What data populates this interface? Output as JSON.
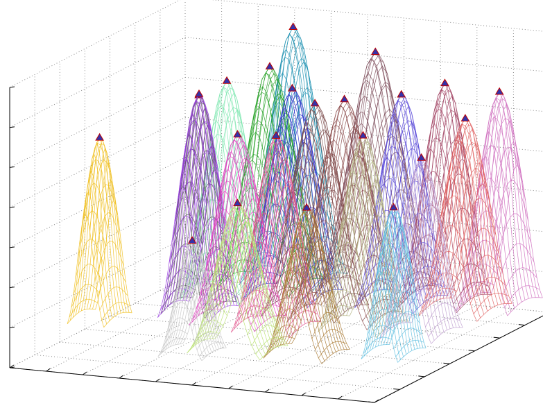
{
  "chart_data": {
    "type": "surface-mesh-3d",
    "title": "",
    "xlabel": "",
    "ylabel": "",
    "zlabel": "",
    "grid": true,
    "ticks_labeled": false,
    "z_ticks": 7,
    "x_ticks": 10,
    "y_ticks": 7,
    "peak_marker": {
      "shape": "triangle",
      "fill": "#3333aa",
      "edge": "#c00000"
    },
    "series": [
      {
        "color": "#1a8fb0",
        "peak_x": 0.32,
        "peak_y": 0.95,
        "peak_z": 0.95,
        "width": 0.1,
        "depth": 0.2
      },
      {
        "color": "#22a022",
        "peak_x": 0.28,
        "peak_y": 0.9,
        "peak_z": 0.82,
        "width": 0.1,
        "depth": 0.2
      },
      {
        "color": "#7fe8b0",
        "peak_x": 0.22,
        "peak_y": 0.78,
        "peak_z": 0.8,
        "width": 0.08,
        "depth": 0.2
      },
      {
        "color": "#3333cc",
        "peak_x": 0.38,
        "peak_y": 0.82,
        "peak_z": 0.78,
        "width": 0.09,
        "depth": 0.2
      },
      {
        "color": "#7b4a58",
        "peak_x": 0.56,
        "peak_y": 0.92,
        "peak_z": 0.9,
        "width": 0.12,
        "depth": 0.2
      },
      {
        "color": "#5a4ad8",
        "peak_x": 0.66,
        "peak_y": 0.86,
        "peak_z": 0.78,
        "width": 0.08,
        "depth": 0.2
      },
      {
        "color": "#a04060",
        "peak_x": 0.76,
        "peak_y": 0.9,
        "peak_z": 0.82,
        "width": 0.08,
        "depth": 0.2
      },
      {
        "color": "#e06060",
        "peak_x": 0.84,
        "peak_y": 0.85,
        "peak_z": 0.72,
        "width": 0.08,
        "depth": 0.2
      },
      {
        "color": "#d070c0",
        "peak_x": 0.9,
        "peak_y": 0.92,
        "peak_z": 0.8,
        "width": 0.07,
        "depth": 0.2
      },
      {
        "color": "#7a4a4a",
        "peak_x": 0.5,
        "peak_y": 0.7,
        "peak_z": 0.78,
        "width": 0.1,
        "depth": 0.2
      },
      {
        "color": "#8b4a4a",
        "peak_x": 0.6,
        "peak_y": 0.66,
        "peak_z": 0.82,
        "width": 0.11,
        "depth": 0.2
      },
      {
        "color": "#555555",
        "peak_x": 0.22,
        "peak_y": 0.62,
        "peak_z": 0.8,
        "width": 0.06,
        "depth": 0.18
      },
      {
        "color": "#9a40e0",
        "peak_x": 0.24,
        "peak_y": 0.58,
        "peak_z": 0.82,
        "width": 0.07,
        "depth": 0.18
      },
      {
        "color": "#e040c0",
        "peak_x": 0.36,
        "peak_y": 0.55,
        "peak_z": 0.7,
        "width": 0.09,
        "depth": 0.18
      },
      {
        "color": "#e0508a",
        "peak_x": 0.48,
        "peak_y": 0.52,
        "peak_z": 0.72,
        "width": 0.08,
        "depth": 0.18
      },
      {
        "color": "#b0b080",
        "peak_x": 0.68,
        "peak_y": 0.6,
        "peak_z": 0.72,
        "width": 0.08,
        "depth": 0.18
      },
      {
        "color": "#c0a0d0",
        "peak_x": 0.84,
        "peak_y": 0.6,
        "peak_z": 0.66,
        "width": 0.07,
        "depth": 0.18
      },
      {
        "color": "#f0c020",
        "peak_x": 0.03,
        "peak_y": 0.45,
        "peak_z": 0.68,
        "width": 0.05,
        "depth": 0.16
      },
      {
        "color": "#b8e070",
        "peak_x": 0.48,
        "peak_y": 0.3,
        "peak_z": 0.55,
        "width": 0.1,
        "depth": 0.16
      },
      {
        "color": "#a87830",
        "peak_x": 0.66,
        "peak_y": 0.32,
        "peak_z": 0.55,
        "width": 0.08,
        "depth": 0.16
      },
      {
        "color": "#c8c8c8",
        "peak_x": 0.38,
        "peak_y": 0.25,
        "peak_z": 0.42,
        "width": 0.06,
        "depth": 0.14
      },
      {
        "color": "#60c0e0",
        "peak_x": 0.86,
        "peak_y": 0.4,
        "peak_z": 0.55,
        "width": 0.05,
        "depth": 0.16
      }
    ]
  }
}
